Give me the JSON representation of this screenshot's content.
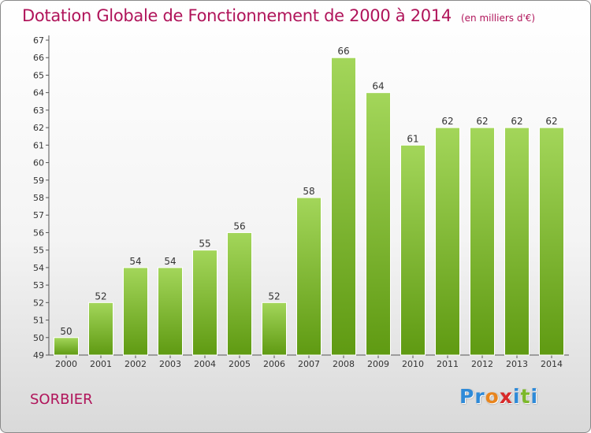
{
  "header": {
    "title": "Dotation Globale de Fonctionnement de 2000 à 2014",
    "unit": "(en milliers d'€)"
  },
  "footer": {
    "city": "SORBIER",
    "logo": "Proxiti"
  },
  "colors": {
    "bar_top": "#a3d65a",
    "bar_bottom": "#5f9a12",
    "title": "#b0145a",
    "logo": [
      "#2e8ad8",
      "#2e8ad8",
      "#e8851e",
      "#d82a2a",
      "#2e8ad8",
      "#7cb82a",
      "#2e8ad8"
    ]
  },
  "chart_data": {
    "type": "bar",
    "categories": [
      "2000",
      "2001",
      "2002",
      "2003",
      "2004",
      "2005",
      "2006",
      "2007",
      "2008",
      "2009",
      "2010",
      "2011",
      "2012",
      "2013",
      "2014"
    ],
    "values": [
      50,
      52,
      54,
      54,
      55,
      56,
      52,
      58,
      66,
      64,
      61,
      62,
      62,
      62,
      62
    ],
    "ylim": [
      49,
      67
    ],
    "yticks": [
      49,
      50,
      51,
      52,
      53,
      54,
      55,
      56,
      57,
      58,
      59,
      60,
      61,
      62,
      63,
      64,
      65,
      66,
      67
    ],
    "grid": false,
    "xlabel": "",
    "ylabel": ""
  }
}
